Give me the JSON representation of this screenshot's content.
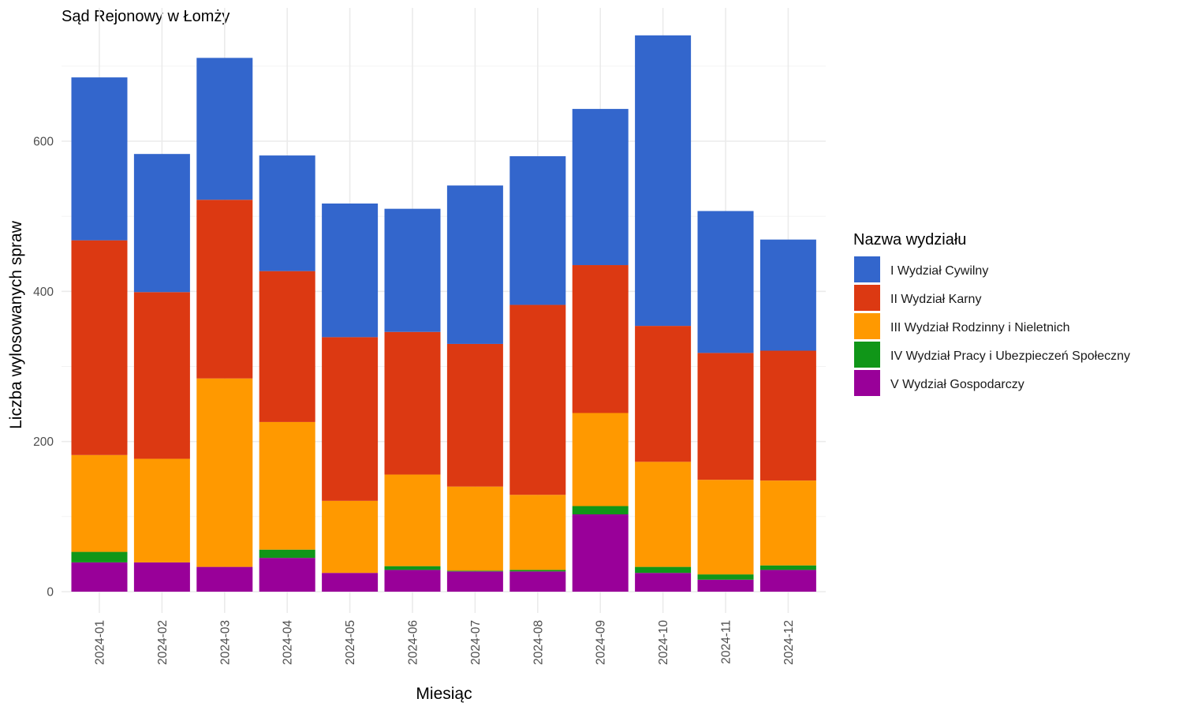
{
  "chart_data": {
    "type": "bar",
    "stacked": true,
    "title": "Sąd Rejonowy w Łomży",
    "xlabel": "Miesiąc",
    "ylabel": "Liczba wylosowanych spraw",
    "ylim": [
      0,
      775
    ],
    "y_ticks": [
      0,
      200,
      400,
      600
    ],
    "grid": true,
    "legend": {
      "title": "Nazwa wydziału",
      "position": "right"
    },
    "categories": [
      "2024-01",
      "2024-02",
      "2024-03",
      "2024-04",
      "2024-05",
      "2024-06",
      "2024-07",
      "2024-08",
      "2024-09",
      "2024-10",
      "2024-11",
      "2024-12"
    ],
    "series": [
      {
        "name": "V Wydział Gospodarczy",
        "color": "#990099",
        "values": [
          39,
          39,
          33,
          45,
          25,
          29,
          27,
          27,
          103,
          25,
          16,
          29
        ]
      },
      {
        "name": "IV Wydział Pracy i Ubezpieczeń Społeczny",
        "color": "#109618",
        "values": [
          14,
          0,
          0,
          11,
          0,
          5,
          1,
          2,
          11,
          8,
          7,
          6
        ]
      },
      {
        "name": "III Wydział Rodzinny i Nieletnich",
        "color": "#FF9900",
        "values": [
          129,
          138,
          251,
          170,
          96,
          122,
          112,
          100,
          124,
          140,
          126,
          113
        ]
      },
      {
        "name": "II Wydział Karny",
        "color": "#DC3912",
        "values": [
          286,
          222,
          238,
          201,
          218,
          190,
          190,
          253,
          197,
          181,
          169,
          173
        ]
      },
      {
        "name": "I Wydział Cywilny",
        "color": "#3366CC",
        "values": [
          217,
          184,
          189,
          154,
          178,
          164,
          211,
          198,
          208,
          387,
          189,
          148
        ]
      }
    ]
  }
}
